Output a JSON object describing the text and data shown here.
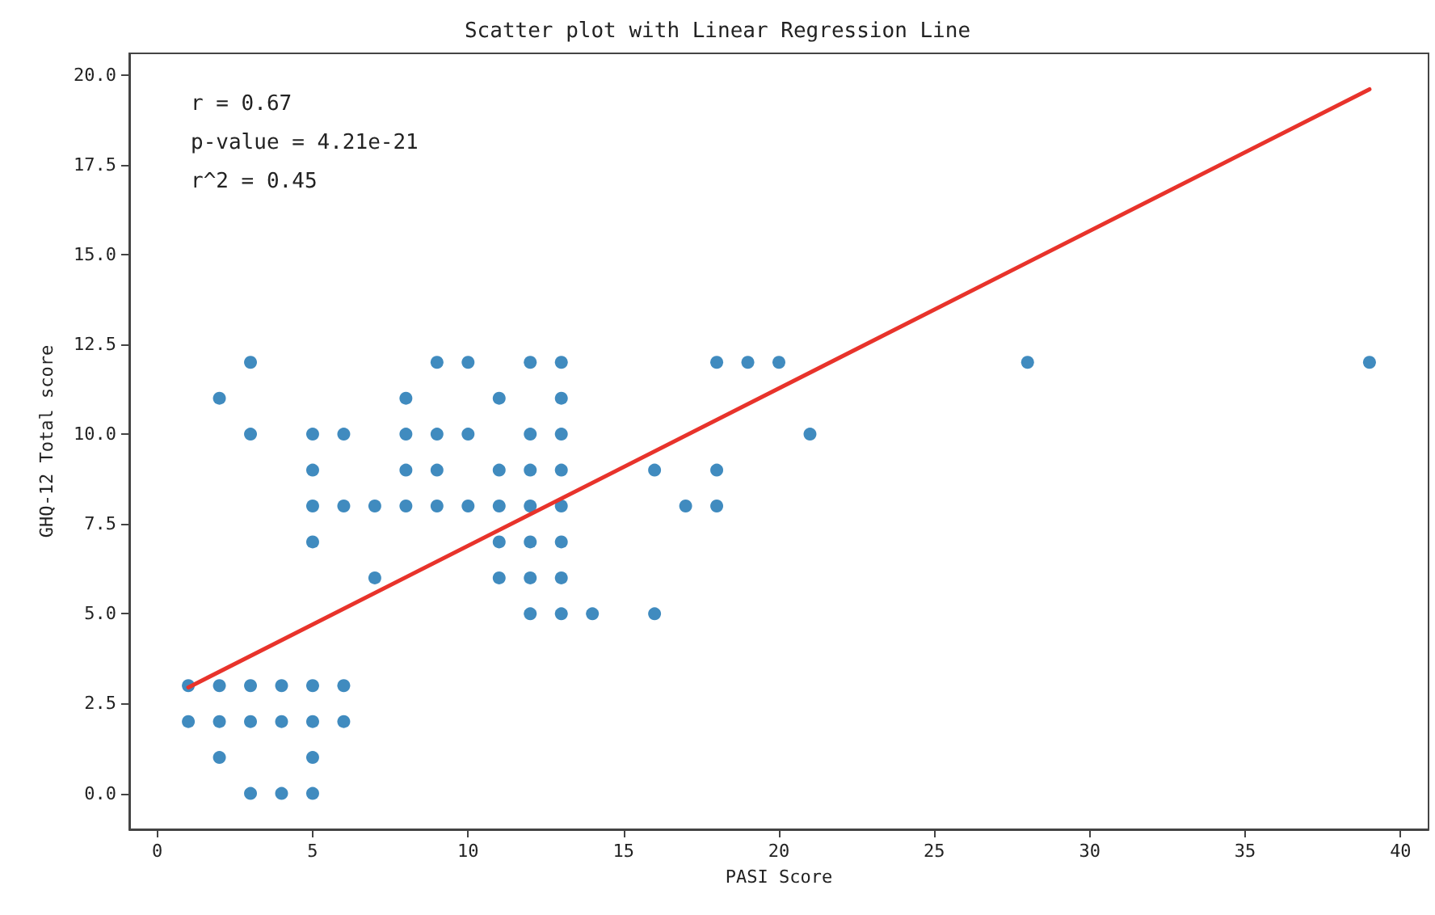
{
  "chart_data": {
    "type": "scatter",
    "title": "Scatter plot with Linear Regression Line",
    "xlabel": "PASI Score",
    "ylabel": "GHQ-12 Total score",
    "annotations": [
      "r = 0.67",
      "p-value = 4.21e-21",
      "r^2 = 0.45"
    ],
    "xlim": [
      -0.9,
      40.9
    ],
    "ylim": [
      -1,
      20.6
    ],
    "xticks": [
      0,
      5,
      10,
      15,
      20,
      25,
      30,
      35,
      40
    ],
    "yticks": [
      {
        "value": 0,
        "label": "0.0"
      },
      {
        "value": 2.5,
        "label": "2.5"
      },
      {
        "value": 5,
        "label": "5.0"
      },
      {
        "value": 7.5,
        "label": "7.5"
      },
      {
        "value": 10,
        "label": "10.0"
      },
      {
        "value": 12.5,
        "label": "12.5"
      },
      {
        "value": 15,
        "label": "15.0"
      },
      {
        "value": 17.5,
        "label": "17.5"
      },
      {
        "value": 20,
        "label": "20.0"
      }
    ],
    "grid": false,
    "marker": "circle",
    "series": [
      {
        "color": "#1f77b4",
        "x": [
          3,
          9,
          10,
          12,
          13,
          18,
          19,
          20,
          28,
          39,
          2,
          8,
          11,
          13,
          3,
          5,
          6,
          8,
          9,
          10,
          12,
          13,
          21,
          5,
          8,
          9,
          11,
          12,
          13,
          16,
          18,
          5,
          6,
          7,
          8,
          9,
          10,
          11,
          12,
          13,
          17,
          18,
          5,
          11,
          12,
          13,
          7,
          11,
          12,
          13,
          12,
          13,
          14,
          16,
          1,
          2,
          3,
          4,
          5,
          6,
          1,
          2,
          3,
          4,
          5,
          6,
          2,
          5,
          3,
          4,
          5
        ],
        "values": [
          12,
          12,
          12,
          12,
          12,
          12,
          12,
          12,
          12,
          12,
          11,
          11,
          11,
          11,
          10,
          10,
          10,
          10,
          10,
          10,
          10,
          10,
          10,
          9,
          9,
          9,
          9,
          9,
          9,
          9,
          9,
          8,
          8,
          8,
          8,
          8,
          8,
          8,
          8,
          8,
          8,
          8,
          7,
          7,
          7,
          7,
          6,
          6,
          6,
          6,
          5,
          5,
          5,
          5,
          3,
          3,
          3,
          3,
          3,
          3,
          2,
          2,
          2,
          2,
          2,
          2,
          1,
          1,
          0,
          0,
          0
        ]
      },
      {
        "type": "line",
        "color": "#e8332b",
        "x": [
          1,
          39
        ],
        "values": [
          2.95,
          19.6
        ],
        "line_style": "solid",
        "marker": "none"
      }
    ]
  }
}
